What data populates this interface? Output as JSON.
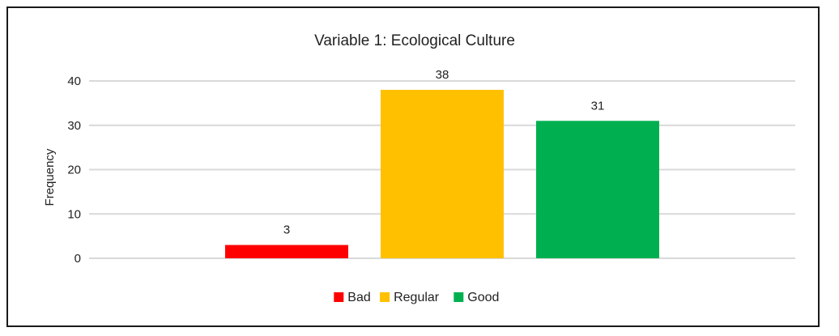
{
  "chart_data": {
    "type": "bar",
    "title": "Variable 1: Ecological Culture",
    "xlabel": "",
    "ylabel": "Frequency",
    "ylim": [
      0,
      40
    ],
    "yticks": [
      0,
      10,
      20,
      30,
      40
    ],
    "grid": true,
    "legend_position": "bottom",
    "categories": [
      "Bad",
      "Regular",
      "Good"
    ],
    "values": [
      3,
      38,
      31
    ],
    "data_labels": [
      "3",
      "38",
      "31"
    ],
    "colors": [
      "#ff0000",
      "#ffc000",
      "#00b050"
    ],
    "legend": [
      "Bad",
      "Regular",
      "Good"
    ]
  }
}
